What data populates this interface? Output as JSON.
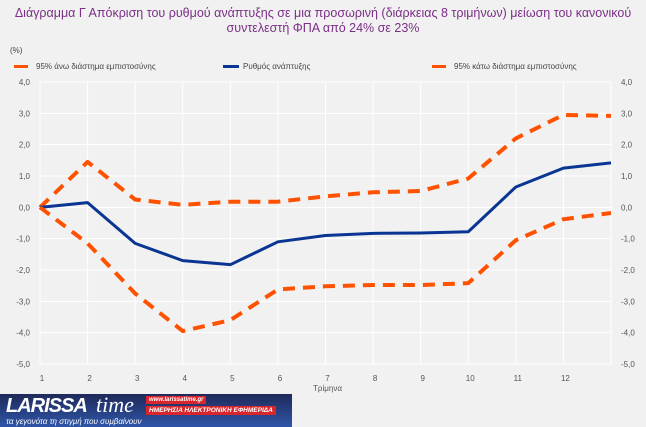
{
  "chart_data": {
    "type": "line",
    "title": "Διάγραμμα Γ Απόκριση του ρυθμού ανάπτυξης σε μια προσωρινή (διάρκειας 8 τριμήνων) μείωση του κανονικού συντελεστή ΦΠΑ από 24% σε 23%",
    "ylabel": "(%)",
    "xlabel": "Τρίμηνα",
    "categories": [
      "1",
      "2",
      "3",
      "4",
      "5",
      "6",
      "7",
      "8",
      "9",
      "10",
      "11",
      "12",
      ""
    ],
    "ylim": [
      -5,
      4
    ],
    "yticks": [
      "4,0",
      "3,0",
      "2,0",
      "1,0",
      "0,0",
      "-1,0",
      "-2,0",
      "-3,0",
      "-4,0",
      "-5,0"
    ],
    "ytick_values": [
      4,
      3,
      2,
      1,
      0,
      -1,
      -2,
      -3,
      -4,
      -5
    ],
    "grid": true,
    "legend_position": "top",
    "series": [
      {
        "name": "95% άνω διάστημα εμπιστοσύνης",
        "color": "#ff5200",
        "style": "dashed",
        "values": [
          0,
          1.45,
          0.25,
          0.08,
          0.18,
          0.18,
          0.35,
          0.48,
          0.52,
          0.92,
          2.2,
          2.95,
          2.92
        ]
      },
      {
        "name": "Ρυθμός ανάπτυξης",
        "color": "#0a3592",
        "style": "solid",
        "values": [
          0,
          0.15,
          -1.15,
          -1.7,
          -1.83,
          -1.1,
          -0.9,
          -0.83,
          -0.82,
          -0.78,
          0.65,
          1.25,
          1.42
        ]
      },
      {
        "name": "95% κάτω διάστημα εμπιστοσύνης",
        "color": "#ff5200",
        "style": "dashed",
        "values": [
          0,
          -1.15,
          -2.75,
          -3.95,
          -3.6,
          -2.62,
          -2.52,
          -2.48,
          -2.48,
          -2.42,
          -1.05,
          -0.38,
          -0.18
        ]
      }
    ]
  },
  "logo": {
    "name": "LARISSA time",
    "url": "www.larissatime.gr",
    "subtitle": "ΗΜΕΡΗΣΙΑ ΗΛΕΚΤΡΟΝΙΚΗ ΕΦΗΜΕΡΙΔΑ",
    "tagline": "τα γεγονότα τη στιγμή που συμβαίνουν"
  }
}
